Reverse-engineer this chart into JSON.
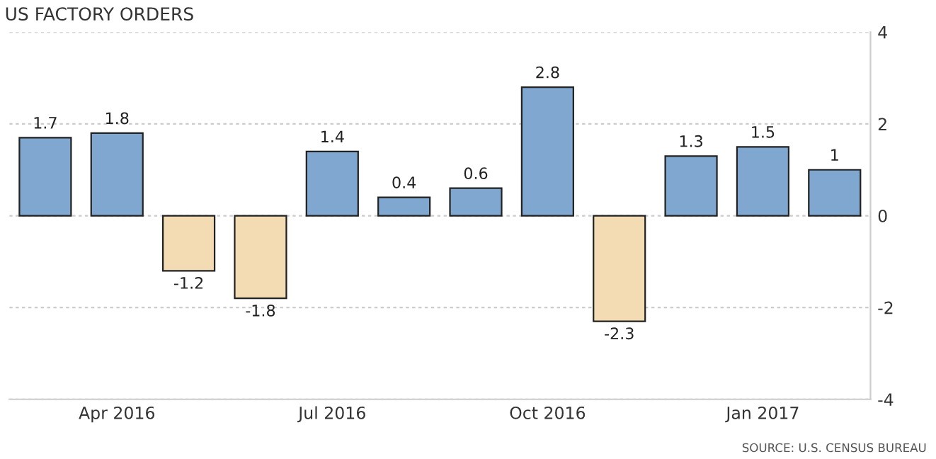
{
  "chart_data": {
    "type": "bar",
    "title": "US FACTORY ORDERS",
    "categories": [
      null,
      "Apr 2016",
      null,
      null,
      "Jul 2016",
      null,
      null,
      "Oct 2016",
      null,
      null,
      "Jan 2017",
      null
    ],
    "values": [
      1.7,
      1.8,
      -1.2,
      -1.8,
      1.4,
      0.4,
      0.6,
      2.8,
      -2.3,
      1.3,
      1.5,
      1
    ],
    "colors": [
      "#7fa7cf",
      "#7fa7cf",
      "#f3dcb4",
      "#f3dcb4",
      "#7fa7cf",
      "#7fa7cf",
      "#7fa7cf",
      "#7fa7cf",
      "#f3dcb4",
      "#7fa7cf",
      "#7fa7cf",
      "#7fa7cf"
    ],
    "ylim": [
      -4,
      4
    ],
    "yticks": [
      -4,
      -2,
      0,
      2,
      4
    ],
    "grid": "y",
    "data_labels": true,
    "annotations": [
      "SOURCE: U.S. CENSUS BUREAU"
    ]
  }
}
